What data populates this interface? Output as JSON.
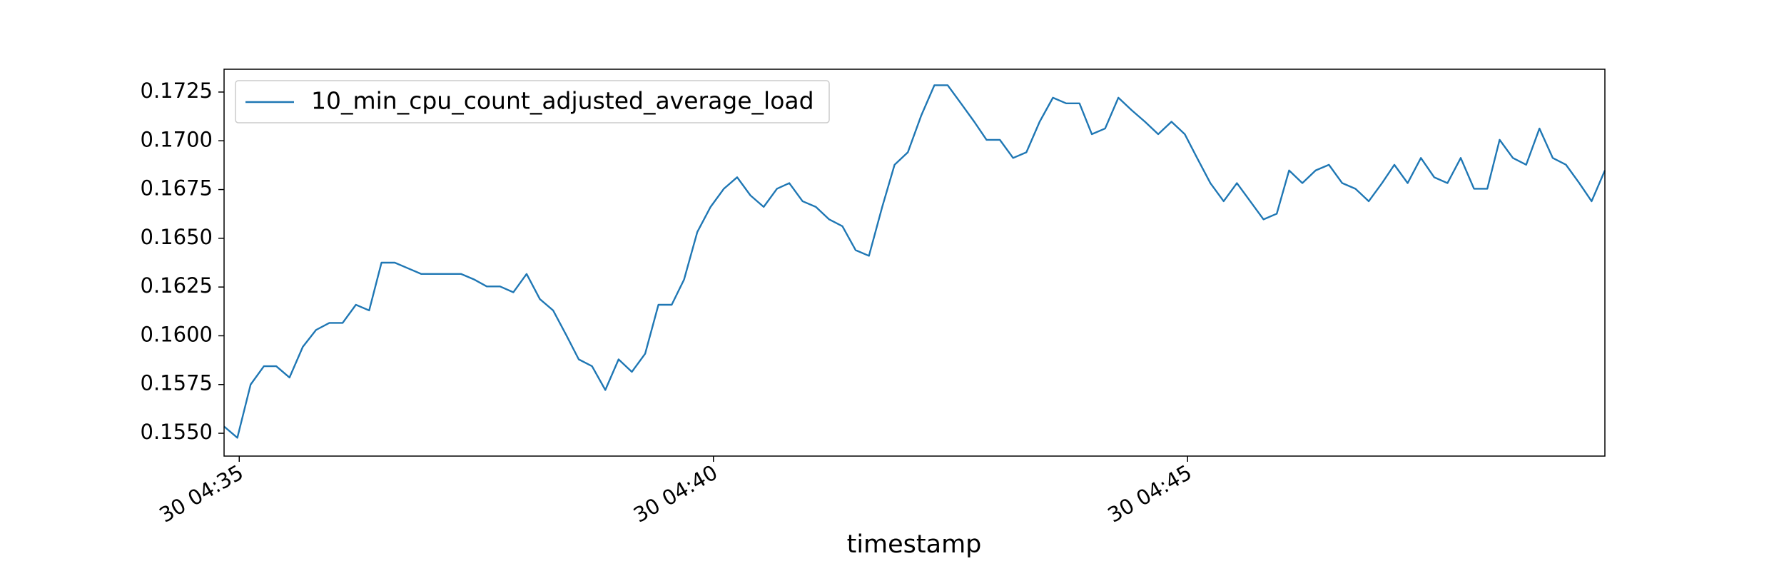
{
  "chart_data": {
    "type": "line",
    "xlabel": "timestamp",
    "x": [
      34.84,
      34.98,
      35.12,
      35.26,
      35.39,
      35.53,
      35.67,
      35.81,
      35.95,
      36.09,
      36.23,
      36.37,
      36.5,
      36.64,
      36.78,
      36.92,
      37.06,
      37.2,
      37.34,
      37.48,
      37.61,
      37.75,
      37.89,
      38.03,
      38.17,
      38.31,
      38.45,
      38.58,
      38.72,
      38.86,
      39.0,
      39.14,
      39.28,
      39.42,
      39.56,
      39.69,
      39.83,
      39.97,
      40.11,
      40.25,
      40.39,
      40.53,
      40.67,
      40.8,
      40.94,
      41.08,
      41.22,
      41.36,
      41.5,
      41.64,
      41.78,
      41.91,
      42.05,
      42.19,
      42.33,
      42.47,
      42.61,
      42.75,
      42.88,
      43.02,
      43.16,
      43.3,
      43.44,
      43.58,
      43.72,
      43.86,
      43.99,
      44.13,
      44.27,
      44.41,
      44.55,
      44.69,
      44.83,
      44.97,
      45.1,
      45.24,
      45.38,
      45.52,
      45.66,
      45.8,
      45.94,
      46.07,
      46.21,
      46.35,
      46.49,
      46.63,
      46.77,
      46.91,
      47.05,
      47.18,
      47.32,
      47.46,
      47.6,
      47.74,
      47.88,
      48.02,
      48.16,
      48.29,
      48.43,
      48.57,
      48.71,
      48.85,
      48.99,
      49.13,
      49.26,
      49.4
    ],
    "series": [
      {
        "name": "10_min_cpu_count_adjusted_average_load",
        "color": "#1f77b4",
        "values": [
          0.15535,
          0.15477,
          0.1575,
          0.15844,
          0.15844,
          0.15786,
          0.15943,
          0.1603,
          0.16066,
          0.16066,
          0.16159,
          0.1613,
          0.16375,
          0.16375,
          0.16346,
          0.16317,
          0.16317,
          0.16317,
          0.16317,
          0.16288,
          0.16253,
          0.16253,
          0.16223,
          0.16317,
          0.16188,
          0.1613,
          0.16002,
          0.15879,
          0.15844,
          0.15722,
          0.15879,
          0.15815,
          0.15908,
          0.16159,
          0.16159,
          0.16288,
          0.16532,
          0.16661,
          0.16754,
          0.16813,
          0.1672,
          0.16661,
          0.16754,
          0.16783,
          0.1669,
          0.16661,
          0.16597,
          0.16562,
          0.16439,
          0.1641,
          0.16661,
          0.16877,
          0.16941,
          0.17128,
          0.17285,
          0.17285,
          0.17192,
          0.17098,
          0.17005,
          0.17005,
          0.16912,
          0.16941,
          0.17098,
          0.17221,
          0.17192,
          0.17192,
          0.17034,
          0.17063,
          0.17221,
          0.17157,
          0.17098,
          0.17034,
          0.17098,
          0.17034,
          0.16912,
          0.16783,
          0.1669,
          0.16783,
          0.1669,
          0.16597,
          0.16626,
          0.16848,
          0.16783,
          0.16848,
          0.16877,
          0.16783,
          0.16754,
          0.1669,
          0.16783,
          0.16877,
          0.16783,
          0.16912,
          0.16813,
          0.16783,
          0.16912,
          0.16754,
          0.16754,
          0.17005,
          0.16912,
          0.16877,
          0.17063,
          0.16912,
          0.16877,
          0.16783,
          0.1669,
          0.16848
        ]
      }
    ],
    "xlim": [
      34.84,
      49.4
    ],
    "xticks": [
      {
        "value": 35,
        "label": "30 04:35"
      },
      {
        "value": 40,
        "label": "30 04:40"
      },
      {
        "value": 45,
        "label": "30 04:45"
      }
    ],
    "ylim": [
      0.15383,
      0.17367
    ],
    "yticks": [
      {
        "value": 0.155,
        "label": "0.1550"
      },
      {
        "value": 0.1575,
        "label": "0.1575"
      },
      {
        "value": 0.16,
        "label": "0.1600"
      },
      {
        "value": 0.1625,
        "label": "0.1625"
      },
      {
        "value": 0.165,
        "label": "0.1650"
      },
      {
        "value": 0.1675,
        "label": "0.1675"
      },
      {
        "value": 0.17,
        "label": "0.1700"
      },
      {
        "value": 0.1725,
        "label": "0.1725"
      }
    ],
    "legend": "upper left"
  }
}
